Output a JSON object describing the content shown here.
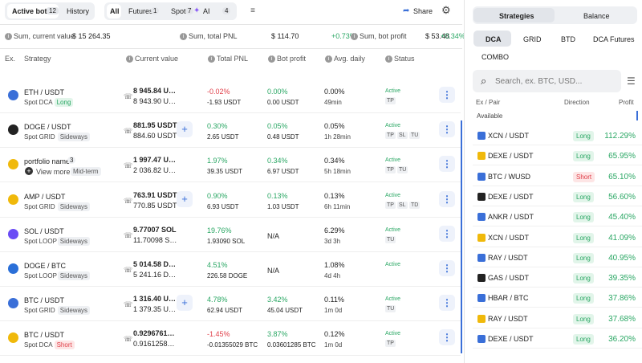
{
  "header": {
    "tabs": [
      {
        "label": "Active bots",
        "count": "12"
      },
      {
        "label": "History"
      }
    ],
    "filters": [
      {
        "label": "All"
      },
      {
        "label": "Futures",
        "count": "1"
      },
      {
        "label": "Spot",
        "count": "7"
      },
      {
        "label": "AI",
        "count": "4"
      }
    ],
    "share": "Share"
  },
  "summary": [
    {
      "label": "Sum, current value",
      "value": "$ 15 264.35"
    },
    {
      "label": "Sum, total PNL",
      "value": "$ 114.70",
      "change": "+0.73%"
    },
    {
      "label": "Sum, bot profit",
      "value": "$ 53.48",
      "change": "+0.34%"
    }
  ],
  "table": {
    "columns": [
      "Ex.",
      "Strategy",
      "Current value",
      "Total PNL",
      "Bot profit",
      "Avg. daily",
      "Status"
    ],
    "rows": [
      {
        "pair": "ETH / USDT",
        "strategy": "Spot DCA",
        "tag": "Long",
        "value": "8 945.84 USDT",
        "start": "8 943.90 USDT",
        "pnl_pct": "-0.02%",
        "pnl": "-1.93 USDT",
        "profit_pct": "0.00%",
        "profit": "0.00 USDT",
        "daily": "0.00%",
        "age": "49min",
        "status": "Active",
        "flags": [
          "TP"
        ]
      },
      {
        "pair": "DOGE / USDT",
        "strategy": "Spot GRID",
        "tag": "Sideways",
        "value": "881.95 USDT",
        "start": "884.60 USDT",
        "pnl_pct": "0.30%",
        "pnl": "2.65 USDT",
        "profit_pct": "0.05%",
        "profit": "0.48 USDT",
        "daily": "0.05%",
        "age": "1h 28min",
        "status": "Active",
        "flags": [
          "TP",
          "SL",
          "TU"
        ]
      },
      {
        "pair": "portfolio name",
        "count": "3",
        "strategy": "View more",
        "tag": "Mid-term",
        "value": "1 997.47 USDT",
        "start": "2 036.82 USDT",
        "pnl_pct": "1.97%",
        "pnl": "39.35 USDT",
        "profit_pct": "0.34%",
        "profit": "6.97 USDT",
        "daily": "0.34%",
        "age": "5h 18min",
        "status": "Active",
        "flags": [
          "TP",
          "TU"
        ]
      },
      {
        "pair": "AMP / USDT",
        "strategy": "Spot GRID",
        "tag": "Sideways",
        "value": "763.91 USDT",
        "start": "770.85 USDT",
        "pnl_pct": "0.90%",
        "pnl": "6.93 USDT",
        "profit_pct": "0.13%",
        "profit": "1.03 USDT",
        "daily": "0.13%",
        "age": "6h 11min",
        "status": "Active",
        "flags": [
          "TP",
          "SL",
          "TD"
        ]
      },
      {
        "pair": "SOL / USDT",
        "strategy": "Spot LOOP",
        "tag": "Sideways",
        "value": "9.77007 SOL",
        "start": "11.70098 SOL",
        "pnl_pct": "19.76%",
        "pnl": "1.93090 SOL",
        "profit_pct": "N/A",
        "daily": "6.29%",
        "age": "3d 3h",
        "status": "Active",
        "flags": [
          "TU"
        ]
      },
      {
        "pair": "DOGE / BTC",
        "strategy": "Spot LOOP",
        "tag": "Sideways",
        "value": "5 014.58 DOGE",
        "start": "5 241.16 DOGE",
        "pnl_pct": "4.51%",
        "pnl": "226.58 DOGE",
        "profit_pct": "N/A",
        "daily": "1.08%",
        "age": "4d 4h",
        "status": "Active",
        "flags": []
      },
      {
        "pair": "BTC / USDT",
        "strategy": "Spot GRID",
        "tag": "Sideways",
        "value": "1 316.40 USDT",
        "start": "1 379.35 USDT",
        "pnl_pct": "4.78%",
        "pnl": "62.94 USDT",
        "profit_pct": "3.42%",
        "profit": "45.04 USDT",
        "daily": "0.11%",
        "age": "1m 0d",
        "status": "Active",
        "flags": [
          "TU"
        ]
      },
      {
        "pair": "BTC / USDT",
        "strategy": "Spot DCA",
        "tag": "Short",
        "value": "0.92967610 BTC",
        "start": "0.91612580 BTC",
        "pnl_pct": "-1.45%",
        "pnl": "-0.01355029 BTC",
        "profit_pct": "3.87%",
        "profit": "0.03601285 BTC",
        "daily": "0.12%",
        "age": "1m 0d",
        "status": "Active",
        "flags": [
          "TP"
        ]
      }
    ]
  },
  "panel": {
    "tabs": [
      "Strategies",
      "Balance"
    ],
    "subtabs": [
      "DCA",
      "GRID",
      "BTD",
      "DCA Futures",
      "COMBO"
    ],
    "search": "Search, ex. BTC, USD...",
    "columns": [
      "Ex / Pair",
      "Direction",
      "Profit"
    ],
    "section": "Available",
    "items": [
      {
        "pair": "XCN / USDT",
        "direction": "Long",
        "profit": "112.29%"
      },
      {
        "pair": "DEXE / USDT",
        "direction": "Long",
        "profit": "65.95%"
      },
      {
        "pair": "BTC / WUSD",
        "direction": "Short",
        "profit": "65.10%"
      },
      {
        "pair": "DEXE / USDT",
        "direction": "Long",
        "profit": "56.60%"
      },
      {
        "pair": "ANKR / USDT",
        "direction": "Long",
        "profit": "45.40%"
      },
      {
        "pair": "XCN / USDT",
        "direction": "Long",
        "profit": "41.09%"
      },
      {
        "pair": "RAY / USDT",
        "direction": "Long",
        "profit": "40.95%"
      },
      {
        "pair": "GAS / USDT",
        "direction": "Long",
        "profit": "39.35%"
      },
      {
        "pair": "HBAR / BTC",
        "direction": "Long",
        "profit": "37.86%"
      },
      {
        "pair": "RAY / USDT",
        "direction": "Long",
        "profit": "37.68%"
      },
      {
        "pair": "DEXE / USDT",
        "direction": "Long",
        "profit": "36.20%"
      }
    ]
  }
}
